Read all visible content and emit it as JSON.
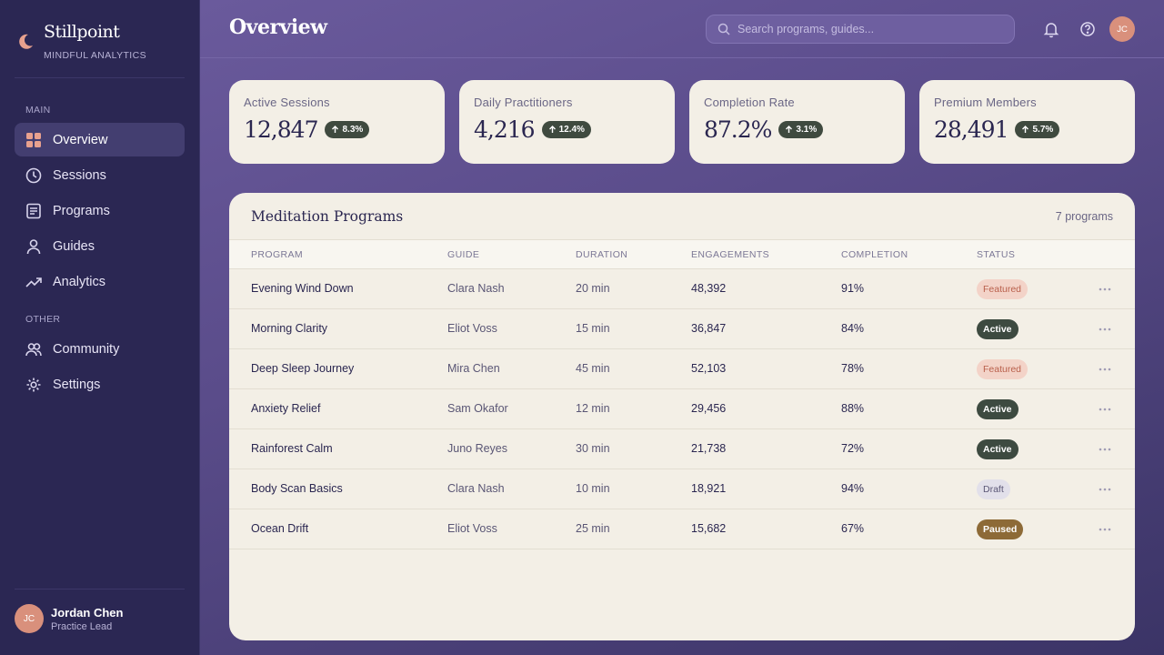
{
  "brand": {
    "name": "Stillpoint",
    "subtitle": "MINDFUL ANALYTICS"
  },
  "sidebar": {
    "main_label": "MAIN",
    "main_items": [
      {
        "label": "Overview",
        "icon": "grid-icon",
        "active": true
      },
      {
        "label": "Sessions",
        "icon": "clock-icon"
      },
      {
        "label": "Programs",
        "icon": "document-icon"
      },
      {
        "label": "Guides",
        "icon": "user-icon"
      },
      {
        "label": "Analytics",
        "icon": "trending-up-icon"
      }
    ],
    "other_label": "OTHER",
    "other_items": [
      {
        "label": "Community",
        "icon": "users-icon"
      },
      {
        "label": "Settings",
        "icon": "gear-icon"
      }
    ],
    "user": {
      "initials": "JC",
      "name": "Jordan Chen",
      "role": "Practice Lead"
    }
  },
  "header": {
    "title": "Overview",
    "search_placeholder": "Search programs, guides...",
    "avatar_initials": "JC"
  },
  "stats": [
    {
      "label": "Active Sessions",
      "value": "12,847",
      "delta": "8.3%"
    },
    {
      "label": "Daily Practitioners",
      "value": "4,216",
      "delta": "12.4%"
    },
    {
      "label": "Completion Rate",
      "value": "87.2%",
      "delta": "3.1%"
    },
    {
      "label": "Premium Members",
      "value": "28,491",
      "delta": "5.7%"
    }
  ],
  "table": {
    "title": "Meditation Programs",
    "count": "7 programs",
    "columns": [
      "PROGRAM",
      "GUIDE",
      "DURATION",
      "ENGAGEMENTS",
      "COMPLETION",
      "STATUS"
    ],
    "rows": [
      {
        "program": "Evening Wind Down",
        "guide": "Clara Nash",
        "duration": "20 min",
        "engagements": "48,392",
        "completion": "91%",
        "status": "Featured"
      },
      {
        "program": "Morning Clarity",
        "guide": "Eliot Voss",
        "duration": "15 min",
        "engagements": "36,847",
        "completion": "84%",
        "status": "Active"
      },
      {
        "program": "Deep Sleep Journey",
        "guide": "Mira Chen",
        "duration": "45 min",
        "engagements": "52,103",
        "completion": "78%",
        "status": "Featured"
      },
      {
        "program": "Anxiety Relief",
        "guide": "Sam Okafor",
        "duration": "12 min",
        "engagements": "29,456",
        "completion": "88%",
        "status": "Active"
      },
      {
        "program": "Rainforest Calm",
        "guide": "Juno Reyes",
        "duration": "30 min",
        "engagements": "21,738",
        "completion": "72%",
        "status": "Active"
      },
      {
        "program": "Body Scan Basics",
        "guide": "Clara Nash",
        "duration": "10 min",
        "engagements": "18,921",
        "completion": "94%",
        "status": "Draft"
      },
      {
        "program": "Ocean Drift",
        "guide": "Eliot Voss",
        "duration": "25 min",
        "engagements": "15,682",
        "completion": "67%",
        "status": "Paused"
      }
    ]
  },
  "colors": {
    "sidebar": "#2b2753",
    "accent": "#e8a18e",
    "card": "#f3efe6",
    "active_badge": "#3d4a40",
    "featured_badge": "#f3d3c8",
    "paused_badge": "#8d6a37"
  }
}
